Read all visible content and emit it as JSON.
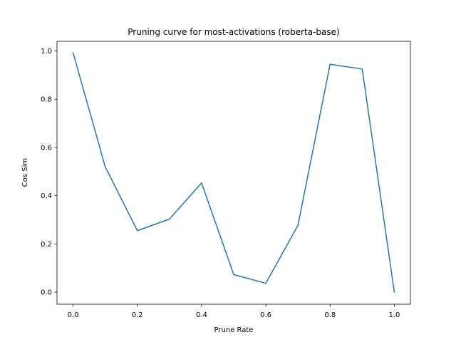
{
  "chart_data": {
    "type": "line",
    "title": "Pruning curve for most-activations (roberta-base)",
    "xlabel": "Prune Rate",
    "ylabel": "Cos Sim",
    "x": [
      0.0,
      0.1,
      0.2,
      0.3,
      0.4,
      0.5,
      0.6,
      0.7,
      0.8,
      0.9,
      1.0
    ],
    "series": [
      {
        "values": [
          0.993,
          0.52,
          0.255,
          0.303,
          0.453,
          0.073,
          0.037,
          0.277,
          0.945,
          0.925,
          0.0
        ],
        "color": "#1f77b4"
      }
    ],
    "xlim": [
      -0.05,
      1.05
    ],
    "ylim": [
      -0.05,
      1.04
    ],
    "xticks": [
      0.0,
      0.2,
      0.4,
      0.6,
      0.8,
      1.0
    ],
    "xtick_labels": [
      "0.0",
      "0.2",
      "0.4",
      "0.6",
      "0.8",
      "1.0"
    ],
    "yticks": [
      0.0,
      0.2,
      0.4,
      0.6,
      0.8,
      1.0
    ],
    "ytick_labels": [
      "0.0",
      "0.2",
      "0.4",
      "0.6",
      "0.8",
      "1.0"
    ],
    "grid": false,
    "legend": "none"
  }
}
